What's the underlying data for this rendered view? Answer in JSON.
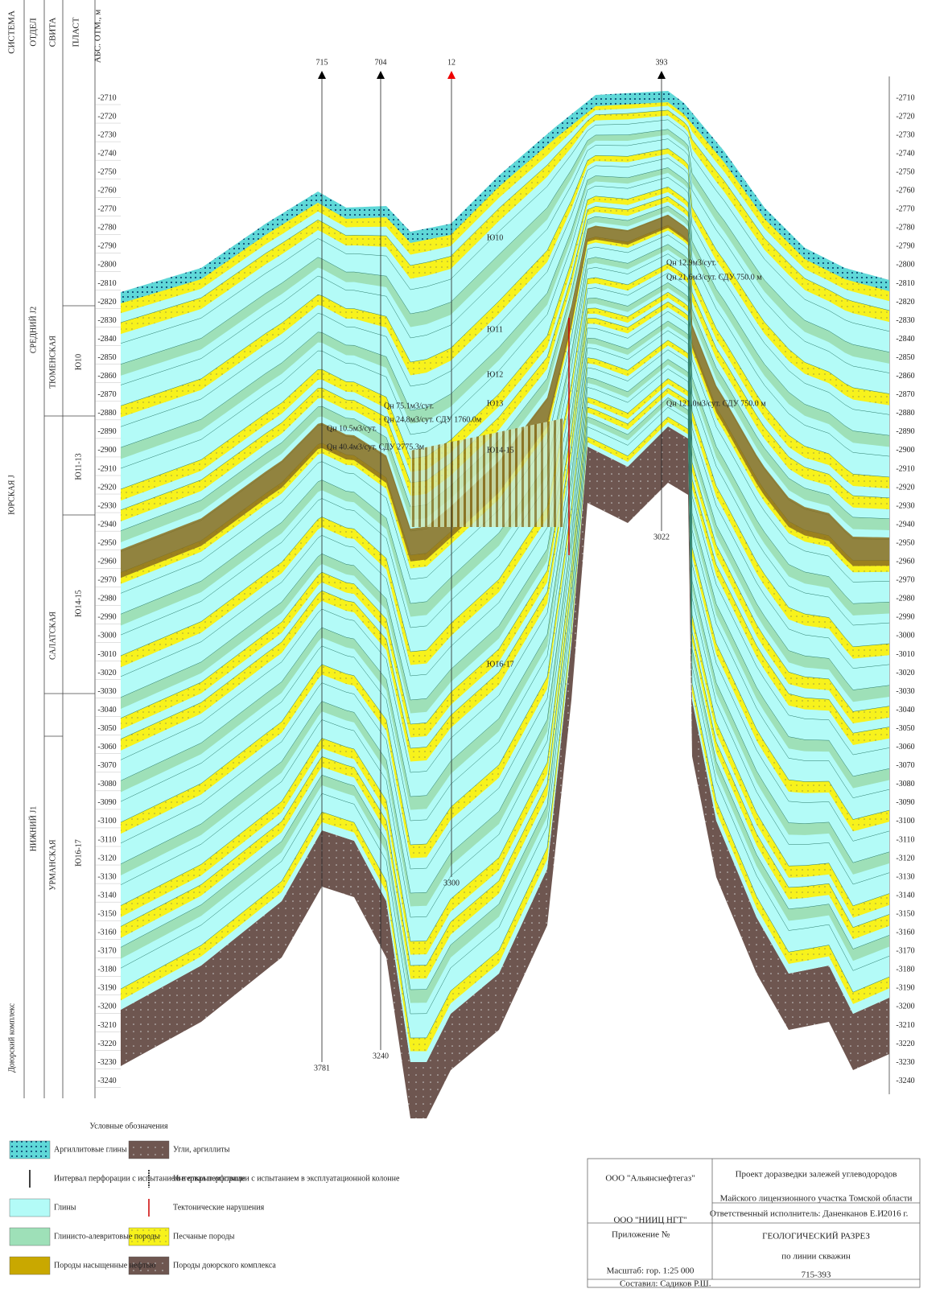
{
  "header": {
    "columns": [
      "СИСТЕМА",
      "ОТДЕЛ",
      "СВИТА",
      "ПЛАСТ",
      "АБС. ОТМ., м"
    ]
  },
  "stratigraphy": {
    "system": [
      "ЮРСКАЯ J",
      "Доюрский комплекс"
    ],
    "division": [
      "СРЕДНИЙ J2",
      "НИЖНИЙ J1"
    ],
    "formation": [
      "ТЮМЕНСКАЯ",
      "САЛАТСКАЯ",
      "УРМАНСКАЯ"
    ],
    "layer": [
      "Ю10",
      "Ю11-13",
      "Ю14-15",
      "Ю16-17"
    ]
  },
  "depth_ticks": [
    -2710,
    -2720,
    -2730,
    -2740,
    -2750,
    -2760,
    -2770,
    -2780,
    -2790,
    -2800,
    -2810,
    -2820,
    -2830,
    -2840,
    -2850,
    -2860,
    -2870,
    -2880,
    -2890,
    -2900,
    -2910,
    -2920,
    -2930,
    -2940,
    -2950,
    -2960,
    -2970,
    -2980,
    -2990,
    -3000,
    -3010,
    -3020,
    -3030,
    -3040,
    -3050,
    -3060,
    -3070,
    -3080,
    -3090,
    -3100,
    -3110,
    -3120,
    -3130,
    -3140,
    -3150,
    -3160,
    -3170,
    -3180,
    -3190,
    -3200,
    -3210,
    -3220,
    -3230,
    -3240
  ],
  "wells": [
    {
      "name": "715",
      "bottom": "3781"
    },
    {
      "name": "704",
      "bottom": "3240"
    },
    {
      "name": "12",
      "bottom": "3300"
    },
    {
      "name": "393",
      "bottom": "3022"
    }
  ],
  "annotations": {
    "layers": [
      "Ю10",
      "Ю11",
      "Ю12",
      "Ю13",
      "Ю14-15",
      "Ю16-17"
    ],
    "tests": [
      "Qн 12.9м3/сут.",
      "Qн 21.6м3/сут. СДУ 750.0 м",
      "Qн 121.0м3/сут. СДУ 750.0 м",
      "Qн 10.5м3/сут.",
      "Qн 40.4м3/сут. СДУ 2775.3м",
      "Qн 75.1м3/сут.",
      "Qн 24.8м3/сут. СДУ 1760.0м"
    ]
  },
  "legend": {
    "title": "Условные обозначения",
    "items": [
      "Аргиллитовые глины",
      "Угли, аргиллиты",
      "Интервал перфорации с испытанием в открытом стволе",
      "Интервал перфорации с испытанием в эксплуатационной колонне",
      "Глины",
      "Тектонические нарушения",
      "Глинисто-алевритовые породы",
      "Песчаные породы",
      "Породы насыщенные нефтью",
      "Породы доюрского комплекса"
    ]
  },
  "title_block": {
    "customer": "ООО \"Альянснефтегаз\"",
    "contractor": "ООО \"НИИЦ НГТ\"",
    "project_line1": "Проект доразведки залежей углеводородов",
    "project_line2": "Майского лицензионного участка Томской области",
    "executor": "Ответственный исполнитель: Даненканов Е.И",
    "year": "2016 г.",
    "appendix": "Приложение №",
    "drawing_title": "ГЕОЛОГИЧЕСКИЙ РАЗРЕЗ",
    "drawing_subtitle": "по линии скважин",
    "wells_line": "715-393",
    "scale": "Масштаб: гор. 1:25 000",
    "author": "Составил: Садиков Р.Ш."
  }
}
